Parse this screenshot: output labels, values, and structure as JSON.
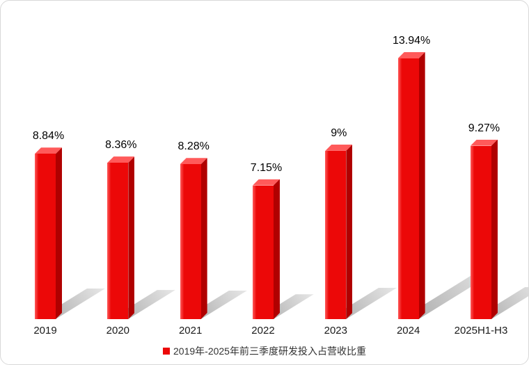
{
  "chart_data": {
    "type": "bar",
    "categories": [
      "2019",
      "2020",
      "2021",
      "2022",
      "2023",
      "2024",
      "2025H1-H3"
    ],
    "values": [
      8.84,
      8.36,
      8.28,
      7.15,
      9,
      13.94,
      9.27
    ],
    "value_labels": [
      "8.84%",
      "8.36%",
      "8.28%",
      "7.15%",
      "9%",
      "13.94%",
      "9.27%"
    ],
    "title": "",
    "xlabel": "",
    "ylabel": "",
    "ylim": [
      0,
      14
    ],
    "grid": false,
    "legend": "2019年-2025年前三季度研发投入占营收比重",
    "legend_position": "bottom",
    "bar_color": "#ec0808",
    "bar_top_color": "#ff5a5a",
    "bar_side_color": "#b00000",
    "shadow_color": "#8c8c8c"
  }
}
